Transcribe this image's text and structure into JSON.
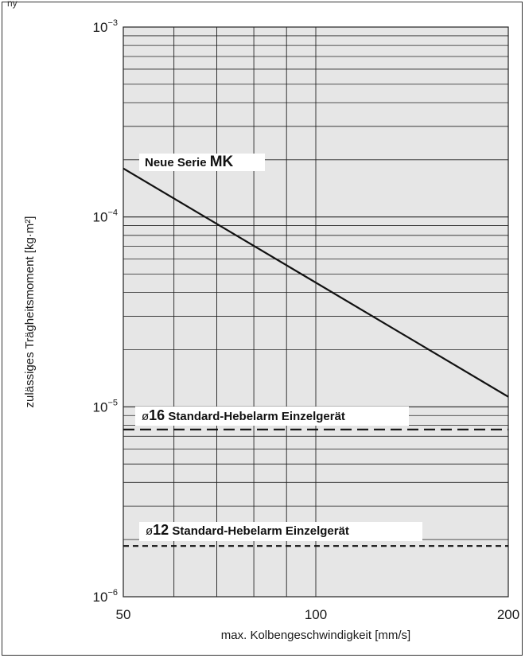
{
  "header_text": "ny",
  "chart_data": {
    "type": "line",
    "x_scale": "log",
    "y_scale": "log",
    "xlim": [
      50,
      200
    ],
    "ylim": [
      1e-06,
      0.001
    ],
    "x_ticks": [
      {
        "value": 50,
        "label": "50"
      },
      {
        "value": 100,
        "label": "100"
      },
      {
        "value": 200,
        "label": "200"
      }
    ],
    "y_ticks": [
      {
        "value": 0.001,
        "base": "10",
        "exp": "−3"
      },
      {
        "value": 0.0001,
        "base": "10",
        "exp": "−4"
      },
      {
        "value": 1e-05,
        "base": "10",
        "exp": "−5"
      },
      {
        "value": 1e-06,
        "base": "10",
        "exp": "−6"
      }
    ],
    "xlabel": "max. Kolbengeschwindigkeit [mm/s]",
    "ylabel": "zulässiges Trägheitsmoment [kg·m²]",
    "grid": true,
    "series": [
      {
        "name": "Neue Serie MK",
        "name_prefix": "Neue Serie ",
        "name_bold": "MK",
        "style": "solid",
        "x": [
          50,
          200
        ],
        "y": [
          0.00018,
          1.13e-05
        ]
      },
      {
        "name": "ø16 Standard-Hebelarm Einzelgerät",
        "name_prefix": "ø",
        "name_bold": "16",
        "name_suffix": " Standard-Hebelarm Einzelgerät",
        "style": "dashed",
        "x": [
          50,
          200
        ],
        "y": [
          7.6e-06,
          7.6e-06
        ]
      },
      {
        "name": "ø12 Standard-Hebelarm Einzelgerät",
        "name_prefix": "ø",
        "name_bold": "12",
        "name_suffix": " Standard-Hebelarm Einzelgerät",
        "style": "dotted",
        "x": [
          50,
          200
        ],
        "y": [
          1.85e-06,
          1.85e-06
        ]
      }
    ]
  }
}
